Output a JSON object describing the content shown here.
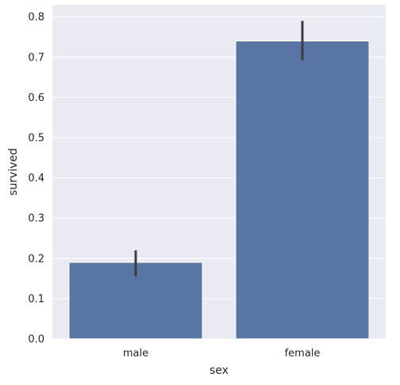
{
  "chart_data": {
    "type": "bar",
    "categories": [
      "male",
      "female"
    ],
    "values": [
      0.19,
      0.74
    ],
    "error_bars": [
      [
        0.155,
        0.22
      ],
      [
        0.692,
        0.79
      ]
    ],
    "xlabel": "sex",
    "ylabel": "survived",
    "ylim": [
      0,
      0.83
    ],
    "yticks": [
      "0.0",
      "0.1",
      "0.2",
      "0.3",
      "0.4",
      "0.5",
      "0.6",
      "0.7",
      "0.8"
    ],
    "grid": true,
    "colors": {
      "bar": "#5975a4",
      "bar_edge": "#ffffff",
      "background": "#eaeaf2",
      "grid": "#ffffff",
      "error_bar": "#3d3d3d"
    }
  }
}
